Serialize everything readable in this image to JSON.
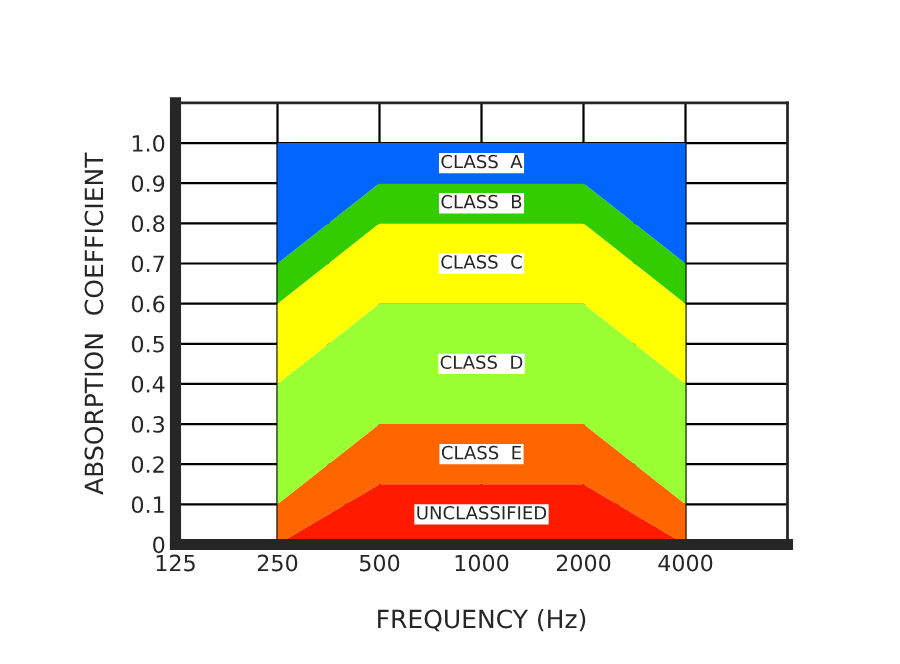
{
  "chart_data": {
    "type": "area",
    "stacked": true,
    "xlabel": "FREQUENCY (Hz)",
    "ylabel": "ABSORPTION  COEFFICIENT",
    "x": [
      250,
      500,
      2000,
      4000
    ],
    "series": [
      {
        "name": "UNCLASSIFIED",
        "color": "#ff1a00",
        "values": [
          0,
          0.15,
          0.15,
          0
        ]
      },
      {
        "name": "CLASS  E",
        "color": "#ff6600",
        "values": [
          0.1,
          0.15,
          0.15,
          0.1
        ]
      },
      {
        "name": "CLASS  D",
        "color": "#99ff33",
        "values": [
          0.3,
          0.3,
          0.3,
          0.3
        ]
      },
      {
        "name": "CLASS  C",
        "color": "#ffff00",
        "values": [
          0.2,
          0.2,
          0.2,
          0.2
        ]
      },
      {
        "name": "CLASS  B",
        "color": "#33cc00",
        "values": [
          0.1,
          0.1,
          0.1,
          0.1
        ]
      },
      {
        "name": "CLASS  A",
        "color": "#0066ff",
        "values": [
          0.3,
          0.1,
          0.1,
          0.3
        ]
      }
    ],
    "log": "x",
    "xlim": [
      125,
      8000
    ],
    "xticks": [
      125,
      250,
      500,
      1000,
      2000,
      4000
    ],
    "ylim": [
      0,
      1.1
    ],
    "yticks": [
      0,
      0.1,
      0.2,
      0.3,
      0.4,
      0.5,
      0.6,
      0.7,
      0.8,
      0.9,
      {
        "value": 1.0,
        "label": "1.0"
      },
      {
        "value": 1.1,
        "label": null
      }
    ],
    "grid": true,
    "legend": false
  }
}
